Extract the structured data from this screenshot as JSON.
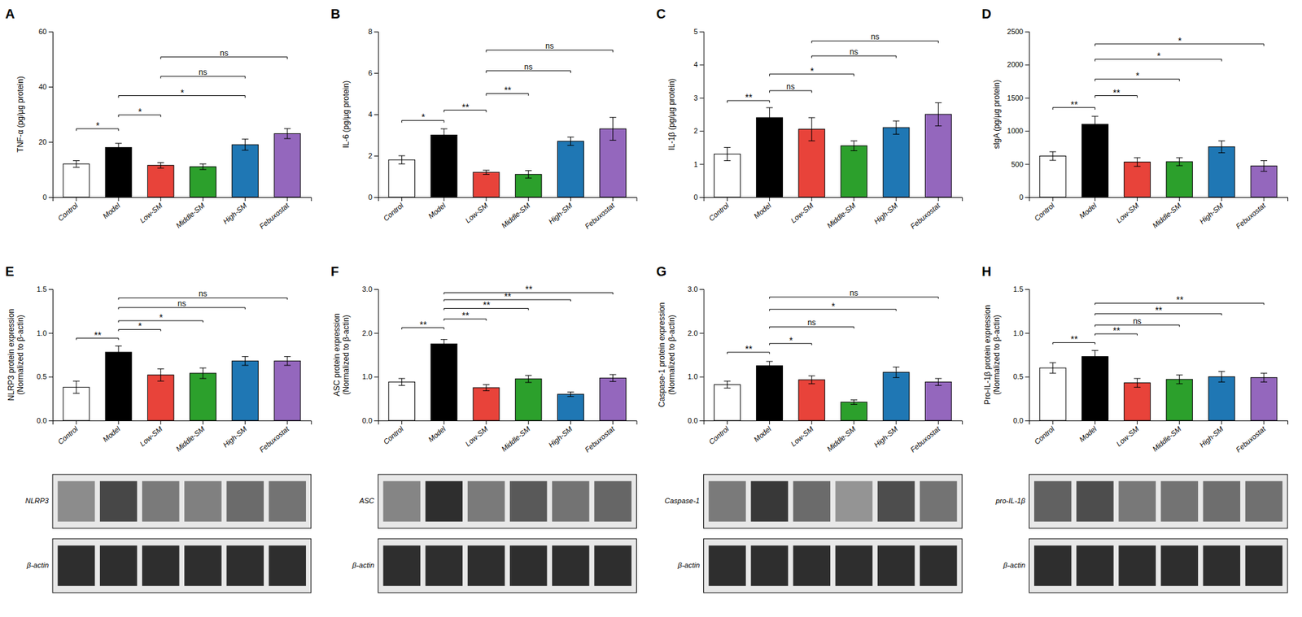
{
  "chart_data": [
    {
      "type": "bar",
      "title": "A",
      "y_label": "TNF-α (pg/µg protein)",
      "categories": [
        "Control",
        "Model",
        "Low-SM",
        "Middle-SM",
        "High-SM",
        "Febuxostat"
      ],
      "colors": [
        "white",
        "black",
        "#E8433A",
        "#2CA02C",
        "#1F77B4",
        "#9467BD"
      ],
      "values": [
        12.0,
        18.0,
        11.5,
        11.0,
        19.0,
        23.0
      ],
      "errors": [
        1.2,
        1.5,
        1.0,
        1.0,
        2.0,
        1.8
      ],
      "ylim": [
        0,
        60
      ],
      "yticks": [
        0,
        20,
        40,
        60
      ],
      "grid": false,
      "annotations": [
        {
          "from": "Control",
          "to": "Model",
          "y": 24,
          "label": "*"
        },
        {
          "from": "Model",
          "to": "Low-SM",
          "y": 29,
          "label": "*"
        },
        {
          "from": "Model",
          "to": "High-SM",
          "y": 36,
          "label": "*"
        },
        {
          "from": "Low-SM",
          "to": "High-SM",
          "y": 43,
          "label": "ns"
        },
        {
          "from": "Low-SM",
          "to": "Febuxostat",
          "y": 50,
          "label": "ns"
        }
      ]
    },
    {
      "type": "bar",
      "title": "B",
      "y_label": "IL-6 (pg/µg protein)",
      "categories": [
        "Control",
        "Model",
        "Low-SM",
        "Middle-SM",
        "High-SM",
        "Febuxostat"
      ],
      "colors": [
        "white",
        "black",
        "#E8433A",
        "#2CA02C",
        "#1F77B4",
        "#9467BD"
      ],
      "values": [
        1.8,
        3.0,
        1.2,
        1.1,
        2.7,
        3.3
      ],
      "errors": [
        0.2,
        0.3,
        0.1,
        0.18,
        0.2,
        0.55
      ],
      "ylim": [
        0,
        8
      ],
      "yticks": [
        0,
        2,
        4,
        6,
        8
      ],
      "grid": false,
      "annotations": [
        {
          "from": "Control",
          "to": "Model",
          "y": 3.6,
          "label": "*"
        },
        {
          "from": "Model",
          "to": "Low-SM",
          "y": 4.1,
          "label": "**"
        },
        {
          "from": "Low-SM",
          "to": "Middle-SM",
          "y": 4.9,
          "label": "**"
        },
        {
          "from": "Low-SM",
          "to": "High-SM",
          "y": 6.0,
          "label": "ns"
        },
        {
          "from": "Low-SM",
          "to": "Febuxostat",
          "y": 7.0,
          "label": "ns"
        }
      ]
    },
    {
      "type": "bar",
      "title": "C",
      "y_label": "IL-1β (pg/µg protein)",
      "categories": [
        "Control",
        "Model",
        "Low-SM",
        "Middle-SM",
        "High-SM",
        "Febuxostat"
      ],
      "colors": [
        "white",
        "black",
        "#E8433A",
        "#2CA02C",
        "#1F77B4",
        "#9467BD"
      ],
      "values": [
        1.3,
        2.4,
        2.05,
        1.55,
        2.1,
        2.5
      ],
      "errors": [
        0.2,
        0.3,
        0.35,
        0.15,
        0.2,
        0.35
      ],
      "ylim": [
        0,
        5
      ],
      "yticks": [
        0,
        1,
        2,
        3,
        4,
        5
      ],
      "grid": false,
      "annotations": [
        {
          "from": "Control",
          "to": "Model",
          "y": 2.85,
          "label": "**"
        },
        {
          "from": "Model",
          "to": "Low-SM",
          "y": 3.15,
          "label": "ns"
        },
        {
          "from": "Model",
          "to": "Middle-SM",
          "y": 3.65,
          "label": "*"
        },
        {
          "from": "Low-SM",
          "to": "High-SM",
          "y": 4.2,
          "label": "ns"
        },
        {
          "from": "Low-SM",
          "to": "Febuxostat",
          "y": 4.65,
          "label": "ns"
        }
      ]
    },
    {
      "type": "bar",
      "title": "D",
      "y_label": "sIgA (pg/µg protein)",
      "categories": [
        "Control",
        "Model",
        "Low-SM",
        "Middle-SM",
        "High-SM",
        "Febuxostat"
      ],
      "colors": [
        "white",
        "black",
        "#E8433A",
        "#2CA02C",
        "#1F77B4",
        "#9467BD"
      ],
      "values": [
        620,
        1100,
        530,
        535,
        760,
        470
      ],
      "errors": [
        65,
        120,
        65,
        60,
        90,
        80
      ],
      "ylim": [
        0,
        2500
      ],
      "yticks": [
        0,
        500,
        1000,
        1500,
        2000,
        2500
      ],
      "grid": false,
      "annotations": [
        {
          "from": "Control",
          "to": "Model",
          "y": 1320,
          "label": "**"
        },
        {
          "from": "Model",
          "to": "Low-SM",
          "y": 1500,
          "label": "**"
        },
        {
          "from": "Model",
          "to": "Middle-SM",
          "y": 1750,
          "label": "*"
        },
        {
          "from": "Model",
          "to": "High-SM",
          "y": 2050,
          "label": "*"
        },
        {
          "from": "Model",
          "to": "Febuxostat",
          "y": 2280,
          "label": "*"
        }
      ]
    },
    {
      "type": "bar",
      "title": "E",
      "y_label": "NLRP3 protein expression\n(Normalized to β-actin)",
      "categories": [
        "Control",
        "Model",
        "Low-SM",
        "Middle-SM",
        "High-SM",
        "Febuxostat"
      ],
      "colors": [
        "white",
        "black",
        "#E8433A",
        "#2CA02C",
        "#1F77B4",
        "#9467BD"
      ],
      "values": [
        0.38,
        0.78,
        0.52,
        0.54,
        0.68,
        0.68
      ],
      "errors": [
        0.07,
        0.07,
        0.07,
        0.06,
        0.05,
        0.05
      ],
      "ylim": [
        0,
        1.5
      ],
      "yticks": [
        {
          "value": 0,
          "label": "0.0"
        },
        0.5,
        {
          "value": 1,
          "label": "1.0"
        },
        1.5
      ],
      "grid": false,
      "annotations": [
        {
          "from": "Control",
          "to": "Model",
          "y": 0.92,
          "label": "**"
        },
        {
          "from": "Model",
          "to": "Low-SM",
          "y": 1.02,
          "label": "*"
        },
        {
          "from": "Model",
          "to": "Middle-SM",
          "y": 1.12,
          "label": "*"
        },
        {
          "from": "Model",
          "to": "High-SM",
          "y": 1.27,
          "label": "ns"
        },
        {
          "from": "Model",
          "to": "Febuxostat",
          "y": 1.38,
          "label": "ns"
        }
      ],
      "blot": {
        "labels": [
          "NLRP3",
          "β-actin"
        ],
        "intensities": [
          0.55,
          0.28,
          0.48,
          0.5,
          0.42,
          0.45
        ]
      }
    },
    {
      "type": "bar",
      "title": "F",
      "y_label": "ASC protein expression\n(Normalized to β-actin)",
      "categories": [
        "Control",
        "Model",
        "Low-SM",
        "Middle-SM",
        "High-SM",
        "Febuxostat"
      ],
      "colors": [
        "white",
        "black",
        "#E8433A",
        "#2CA02C",
        "#1F77B4",
        "#9467BD"
      ],
      "values": [
        0.88,
        1.75,
        0.75,
        0.95,
        0.6,
        0.97
      ],
      "errors": [
        0.08,
        0.1,
        0.07,
        0.08,
        0.05,
        0.08
      ],
      "ylim": [
        0,
        3.0
      ],
      "yticks": [
        {
          "value": 0,
          "label": "0.0"
        },
        {
          "value": 1,
          "label": "1.0"
        },
        {
          "value": 2,
          "label": "2.0"
        },
        {
          "value": 3,
          "label": "3.0"
        }
      ],
      "grid": false,
      "annotations": [
        {
          "from": "Control",
          "to": "Model",
          "y": 2.08,
          "label": "**"
        },
        {
          "from": "Model",
          "to": "Low-SM",
          "y": 2.28,
          "label": "**"
        },
        {
          "from": "Model",
          "to": "Middle-SM",
          "y": 2.52,
          "label": "**"
        },
        {
          "from": "Model",
          "to": "High-SM",
          "y": 2.72,
          "label": "**"
        },
        {
          "from": "Model",
          "to": "Febuxostat",
          "y": 2.88,
          "label": "**"
        }
      ],
      "blot": {
        "labels": [
          "ASC",
          "β-actin"
        ],
        "intensities": [
          0.52,
          0.18,
          0.48,
          0.35,
          0.45,
          0.4
        ]
      }
    },
    {
      "type": "bar",
      "title": "G",
      "y_label": "Caspase-1 protein expression\n(Normalized to β-actin)",
      "categories": [
        "Control",
        "Model",
        "Low-SM",
        "Middle-SM",
        "High-SM",
        "Febuxostat"
      ],
      "colors": [
        "white",
        "black",
        "#E8433A",
        "#2CA02C",
        "#1F77B4",
        "#9467BD"
      ],
      "values": [
        0.82,
        1.25,
        0.93,
        0.42,
        1.1,
        0.88
      ],
      "errors": [
        0.08,
        0.1,
        0.09,
        0.05,
        0.12,
        0.08
      ],
      "ylim": [
        0,
        3.0
      ],
      "yticks": [
        {
          "value": 0,
          "label": "0.0"
        },
        {
          "value": 1,
          "label": "1.0"
        },
        {
          "value": 2,
          "label": "2.0"
        },
        {
          "value": 3,
          "label": "3.0"
        }
      ],
      "grid": false,
      "annotations": [
        {
          "from": "Control",
          "to": "Model",
          "y": 1.52,
          "label": "**"
        },
        {
          "from": "Model",
          "to": "Low-SM",
          "y": 1.72,
          "label": "*"
        },
        {
          "from": "Model",
          "to": "Middle-SM",
          "y": 2.1,
          "label": "ns"
        },
        {
          "from": "Model",
          "to": "High-SM",
          "y": 2.5,
          "label": "*"
        },
        {
          "from": "Model",
          "to": "Febuxostat",
          "y": 2.78,
          "label": "ns"
        }
      ],
      "blot": {
        "labels": [
          "Caspase-1",
          "β-actin"
        ],
        "intensities": [
          0.48,
          0.22,
          0.42,
          0.58,
          0.3,
          0.45
        ]
      }
    },
    {
      "type": "bar",
      "title": "H",
      "y_label": "Pro-IL-1β protein expression\n(Normalized to β-actin)",
      "categories": [
        "Control",
        "Model",
        "Low-SM",
        "Middle-SM",
        "High-SM",
        "Febuxostat"
      ],
      "colors": [
        "white",
        "black",
        "#E8433A",
        "#2CA02C",
        "#1F77B4",
        "#9467BD"
      ],
      "values": [
        0.6,
        0.73,
        0.43,
        0.47,
        0.5,
        0.49
      ],
      "errors": [
        0.06,
        0.07,
        0.05,
        0.05,
        0.06,
        0.05
      ],
      "ylim": [
        0,
        1.5
      ],
      "yticks": [
        {
          "value": 0,
          "label": "0.0"
        },
        0.5,
        {
          "value": 1,
          "label": "1.0"
        },
        1.5
      ],
      "grid": false,
      "annotations": [
        {
          "from": "Control",
          "to": "Model",
          "y": 0.87,
          "label": "**"
        },
        {
          "from": "Model",
          "to": "Low-SM",
          "y": 0.97,
          "label": "**"
        },
        {
          "from": "Model",
          "to": "Middle-SM",
          "y": 1.07,
          "label": "ns"
        },
        {
          "from": "Model",
          "to": "High-SM",
          "y": 1.2,
          "label": "**"
        },
        {
          "from": "Model",
          "to": "Febuxostat",
          "y": 1.32,
          "label": "**"
        }
      ],
      "blot": {
        "labels": [
          "pro-IL-1β",
          "β-actin"
        ],
        "intensities": [
          0.38,
          0.3,
          0.47,
          0.45,
          0.43,
          0.44
        ]
      }
    }
  ]
}
